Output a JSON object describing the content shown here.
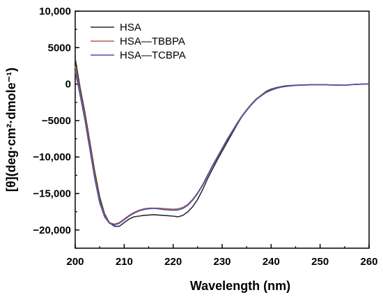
{
  "chart_data": {
    "type": "line",
    "title": "",
    "xlabel": "Wavelength (nm)",
    "ylabel": "[θ](deg·cm²·dmole⁻¹)",
    "xlim": [
      200,
      260
    ],
    "ylim": [
      -22500,
      10000
    ],
    "x_ticks": [
      200,
      210,
      220,
      230,
      240,
      250,
      260
    ],
    "x_tick_labels": [
      "200",
      "210",
      "220",
      "230",
      "240",
      "250",
      "260"
    ],
    "y_ticks": [
      10000,
      5000,
      0,
      -5000,
      -10000,
      -15000,
      -20000
    ],
    "y_tick_labels": [
      "10,000",
      "5000",
      "0",
      "−5000",
      "−10,000",
      "−15,000",
      "−20,000"
    ],
    "grid": false,
    "legend_position": "top-left",
    "series": [
      {
        "name": "HSA",
        "color": "#2b2b2b",
        "x": [
          200,
          201,
          202,
          203,
          204,
          205,
          206,
          207,
          208,
          209,
          210,
          211,
          212,
          213,
          214,
          215,
          216,
          217,
          218,
          219,
          220,
          221,
          222,
          223,
          224,
          225,
          226,
          227,
          228,
          229,
          230,
          231,
          232,
          233,
          234,
          235,
          236,
          237,
          238,
          239,
          240,
          241,
          242,
          243,
          244,
          245,
          246,
          247,
          248,
          249,
          250,
          251,
          252,
          253,
          254,
          255,
          256,
          257,
          258,
          259,
          260
        ],
        "values": [
          3500,
          -500,
          -4000,
          -8000,
          -12000,
          -15500,
          -17800,
          -19000,
          -19500,
          -19500,
          -19000,
          -18500,
          -18200,
          -18100,
          -18000,
          -17950,
          -17900,
          -17950,
          -18000,
          -18050,
          -18100,
          -18200,
          -18000,
          -17500,
          -16800,
          -15800,
          -14500,
          -13000,
          -11700,
          -10400,
          -9200,
          -8000,
          -6800,
          -5600,
          -4500,
          -3600,
          -2800,
          -2100,
          -1500,
          -1000,
          -700,
          -500,
          -350,
          -250,
          -200,
          -150,
          -120,
          -100,
          -90,
          -80,
          -80,
          -80,
          -100,
          -120,
          -140,
          -150,
          -100,
          -50,
          -20,
          0,
          0
        ]
      },
      {
        "name": "HSA—TBBPA",
        "color": "#b5633a",
        "x": [
          200,
          201,
          202,
          203,
          204,
          205,
          206,
          207,
          208,
          209,
          210,
          211,
          212,
          213,
          214,
          215,
          216,
          217,
          218,
          219,
          220,
          221,
          222,
          223,
          224,
          225,
          226,
          227,
          228,
          229,
          230,
          231,
          232,
          233,
          234,
          235,
          236,
          237,
          238,
          239,
          240,
          241,
          242,
          243,
          244,
          245,
          246,
          247,
          248,
          249,
          250,
          251,
          252,
          253,
          254,
          255,
          256,
          257,
          258,
          259,
          260
        ],
        "values": [
          2500,
          -1000,
          -4500,
          -8500,
          -12500,
          -16000,
          -18000,
          -19000,
          -19200,
          -19000,
          -18500,
          -18000,
          -17600,
          -17300,
          -17100,
          -17000,
          -17000,
          -17000,
          -17050,
          -17100,
          -17150,
          -17100,
          -16900,
          -16500,
          -15800,
          -14900,
          -13800,
          -12500,
          -11200,
          -10000,
          -8800,
          -7600,
          -6500,
          -5400,
          -4400,
          -3500,
          -2700,
          -2000,
          -1500,
          -1100,
          -800,
          -550,
          -400,
          -300,
          -230,
          -180,
          -140,
          -110,
          -100,
          -90,
          -90,
          -90,
          -110,
          -130,
          -150,
          -150,
          -100,
          -50,
          -20,
          0,
          0
        ]
      },
      {
        "name": "HSA—TCBPA",
        "color": "#4a4fb0",
        "x": [
          200,
          201,
          202,
          203,
          204,
          205,
          206,
          207,
          208,
          209,
          210,
          211,
          212,
          213,
          214,
          215,
          216,
          217,
          218,
          219,
          220,
          221,
          222,
          223,
          224,
          225,
          226,
          227,
          228,
          229,
          230,
          231,
          232,
          233,
          234,
          235,
          236,
          237,
          238,
          239,
          240,
          241,
          242,
          243,
          244,
          245,
          246,
          247,
          248,
          249,
          250,
          251,
          252,
          253,
          254,
          255,
          256,
          257,
          258,
          259,
          260
        ],
        "values": [
          1800,
          -1500,
          -5000,
          -9000,
          -13000,
          -16300,
          -18200,
          -19100,
          -19300,
          -19100,
          -18600,
          -18100,
          -17700,
          -17400,
          -17200,
          -17100,
          -17050,
          -17100,
          -17200,
          -17250,
          -17300,
          -17250,
          -17050,
          -16600,
          -15900,
          -15000,
          -13900,
          -12600,
          -11300,
          -10100,
          -8900,
          -7700,
          -6600,
          -5500,
          -4500,
          -3600,
          -2800,
          -2100,
          -1600,
          -1150,
          -850,
          -600,
          -430,
          -320,
          -250,
          -190,
          -150,
          -120,
          -100,
          -90,
          -90,
          -90,
          -110,
          -130,
          -150,
          -150,
          -100,
          -50,
          -20,
          0,
          0
        ]
      }
    ]
  }
}
